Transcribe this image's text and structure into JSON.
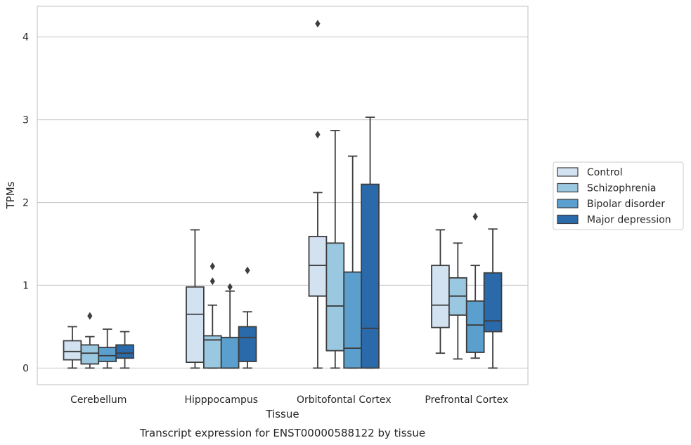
{
  "caption": "Transcript expression for ENST00000588122 by tissue",
  "chart_data": {
    "type": "box",
    "title": "",
    "xlabel": "Tissue",
    "ylabel": "TPMs",
    "ylim": [
      -0.2,
      4.37
    ],
    "yticks": [
      0,
      1,
      2,
      3,
      4
    ],
    "grid": "horizontal",
    "legend_position": "right",
    "categories": [
      "Cerebellum",
      "Hipppocampus",
      "Orbitofontal Cortex",
      "Prefrontal Cortex"
    ],
    "series": [
      {
        "name": "Control",
        "color": "#d2e2f1",
        "boxes": [
          {
            "whislo": 0.0,
            "q1": 0.1,
            "med": 0.2,
            "q3": 0.33,
            "whishi": 0.5,
            "fliers": []
          },
          {
            "whislo": 0.0,
            "q1": 0.07,
            "med": 0.65,
            "q3": 0.98,
            "whishi": 1.67,
            "fliers": []
          },
          {
            "whislo": 0.0,
            "q1": 0.87,
            "med": 1.24,
            "q3": 1.59,
            "whishi": 2.12,
            "fliers": [
              2.82,
              4.16
            ]
          },
          {
            "whislo": 0.18,
            "q1": 0.49,
            "med": 0.76,
            "q3": 1.24,
            "whishi": 1.67,
            "fliers": []
          }
        ]
      },
      {
        "name": "Schizophrenia",
        "color": "#9ac8e0",
        "boxes": [
          {
            "whislo": 0.0,
            "q1": 0.05,
            "med": 0.18,
            "q3": 0.28,
            "whishi": 0.38,
            "fliers": [
              0.63
            ]
          },
          {
            "whislo": 0.0,
            "q1": 0.0,
            "med": 0.34,
            "q3": 0.39,
            "whishi": 0.76,
            "fliers": [
              1.05,
              1.23
            ]
          },
          {
            "whislo": 0.0,
            "q1": 0.21,
            "med": 0.75,
            "q3": 1.51,
            "whishi": 2.87,
            "fliers": []
          },
          {
            "whislo": 0.11,
            "q1": 0.64,
            "med": 0.87,
            "q3": 1.09,
            "whishi": 1.51,
            "fliers": []
          }
        ]
      },
      {
        "name": "Bipolar disorder",
        "color": "#5a9fcd",
        "boxes": [
          {
            "whislo": 0.0,
            "q1": 0.08,
            "med": 0.15,
            "q3": 0.25,
            "whishi": 0.47,
            "fliers": []
          },
          {
            "whislo": 0.0,
            "q1": 0.0,
            "med": 0.0,
            "q3": 0.37,
            "whishi": 0.93,
            "fliers": [
              0.98
            ]
          },
          {
            "whislo": 0.0,
            "q1": 0.0,
            "med": 0.24,
            "q3": 1.16,
            "whishi": 2.56,
            "fliers": []
          },
          {
            "whislo": 0.12,
            "q1": 0.19,
            "med": 0.52,
            "q3": 0.81,
            "whishi": 1.24,
            "fliers": [
              1.83
            ]
          }
        ]
      },
      {
        "name": "Major depression",
        "color": "#2b6aaa",
        "boxes": [
          {
            "whislo": 0.0,
            "q1": 0.12,
            "med": 0.18,
            "q3": 0.28,
            "whishi": 0.44,
            "fliers": []
          },
          {
            "whislo": 0.0,
            "q1": 0.08,
            "med": 0.37,
            "q3": 0.5,
            "whishi": 0.68,
            "fliers": [
              1.18
            ]
          },
          {
            "whislo": 0.0,
            "q1": 0.0,
            "med": 0.48,
            "q3": 2.22,
            "whishi": 3.03,
            "fliers": []
          },
          {
            "whislo": 0.0,
            "q1": 0.44,
            "med": 0.57,
            "q3": 1.15,
            "whishi": 1.68,
            "fliers": []
          }
        ]
      }
    ]
  }
}
